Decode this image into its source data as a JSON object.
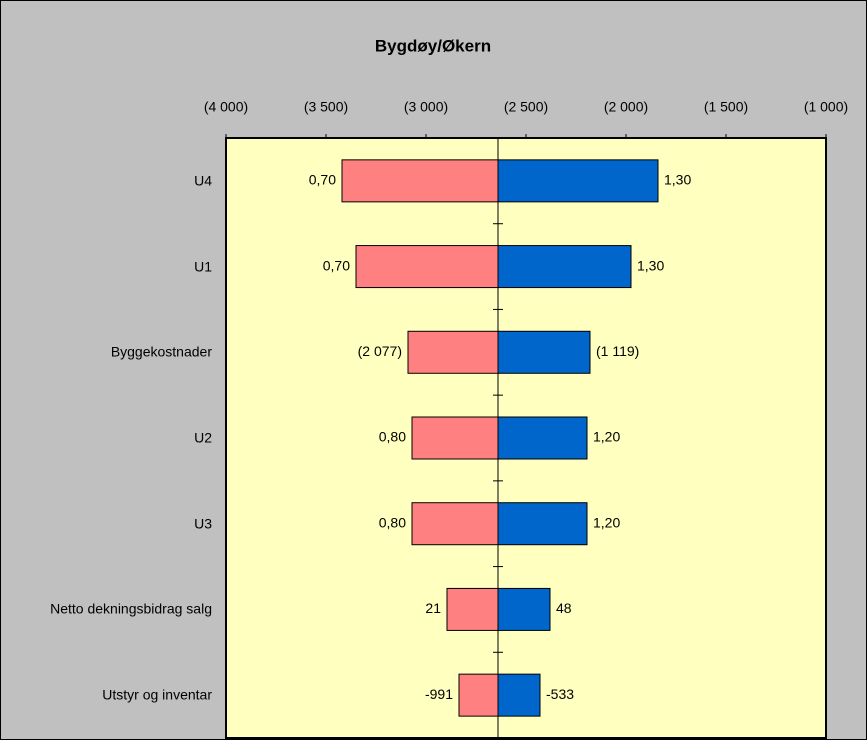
{
  "chart_data": {
    "type": "tornado",
    "title": "Bygdøy/Økern",
    "categories": [
      "U4",
      "U1",
      "Byggekostnader",
      "U2",
      "U3",
      "Netto dekningsbidrag salg",
      "Utstyr og inventar"
    ],
    "base": -2640,
    "series": [
      {
        "color": "#ff8080",
        "values": [
          -3420,
          -3350,
          -3090,
          -3070,
          -3070,
          -2895,
          -2835
        ],
        "labels": [
          "0,70",
          "0,70",
          "(2 077)",
          "0,80",
          "0,80",
          "21",
          "-991"
        ]
      },
      {
        "color": "#0066cc",
        "values": [
          -1840,
          -1975,
          -2180,
          -2195,
          -2195,
          -2380,
          -2430
        ],
        "labels": [
          "1,30",
          "1,30",
          "(1 119)",
          "1,20",
          "1,20",
          "48",
          "-533"
        ]
      }
    ],
    "xlim": [
      -4000,
      -1000
    ],
    "xticks": [
      {
        "value": -4000,
        "label": "(4 000)"
      },
      {
        "value": -3500,
        "label": "(3 500)"
      },
      {
        "value": -3000,
        "label": "(3 000)"
      },
      {
        "value": -2500,
        "label": "(2 500)"
      },
      {
        "value": -2000,
        "label": "(2 000)"
      },
      {
        "value": -1500,
        "label": "(1 500)"
      },
      {
        "value": -1000,
        "label": "(1 000)"
      }
    ]
  }
}
